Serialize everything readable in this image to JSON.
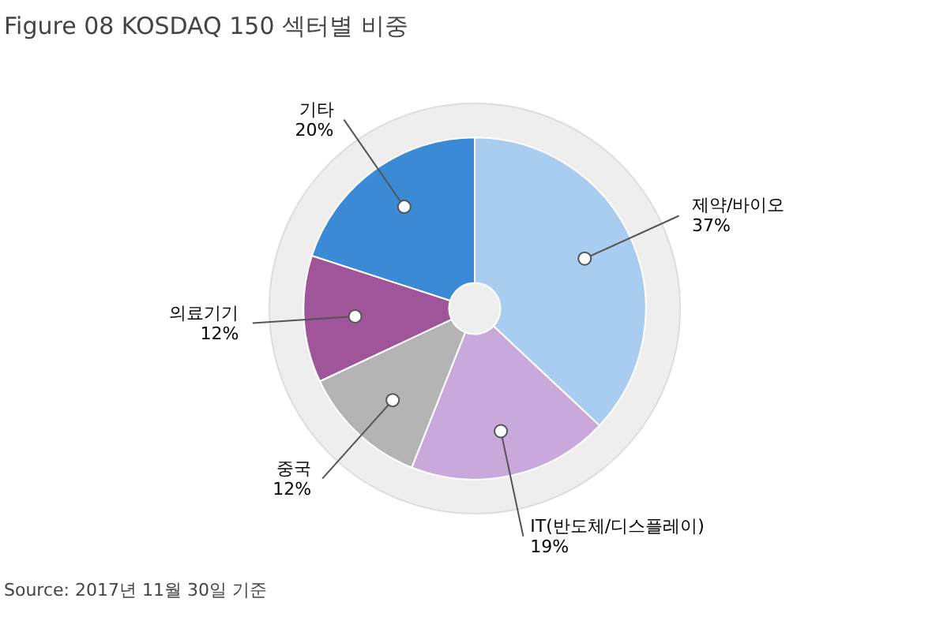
{
  "chart_data": {
    "type": "donut",
    "title": "Figure 08  KOSDAQ 150 섹터별 비중",
    "categories": [
      "제약/바이오",
      "IT(반도체/디스플레이)",
      "중국",
      "의료기기",
      "기타"
    ],
    "values": [
      37,
      19,
      12,
      12,
      20
    ],
    "colors": [
      "#a9cdf0",
      "#c9a9dc",
      "#b4b4b4",
      "#a0559a",
      "#3a8ad6"
    ],
    "value_labels": [
      "37%",
      "19%",
      "12%",
      "12%",
      "20%"
    ],
    "annotations": [
      "Source: 2017년 11월 30일 기준"
    ]
  }
}
